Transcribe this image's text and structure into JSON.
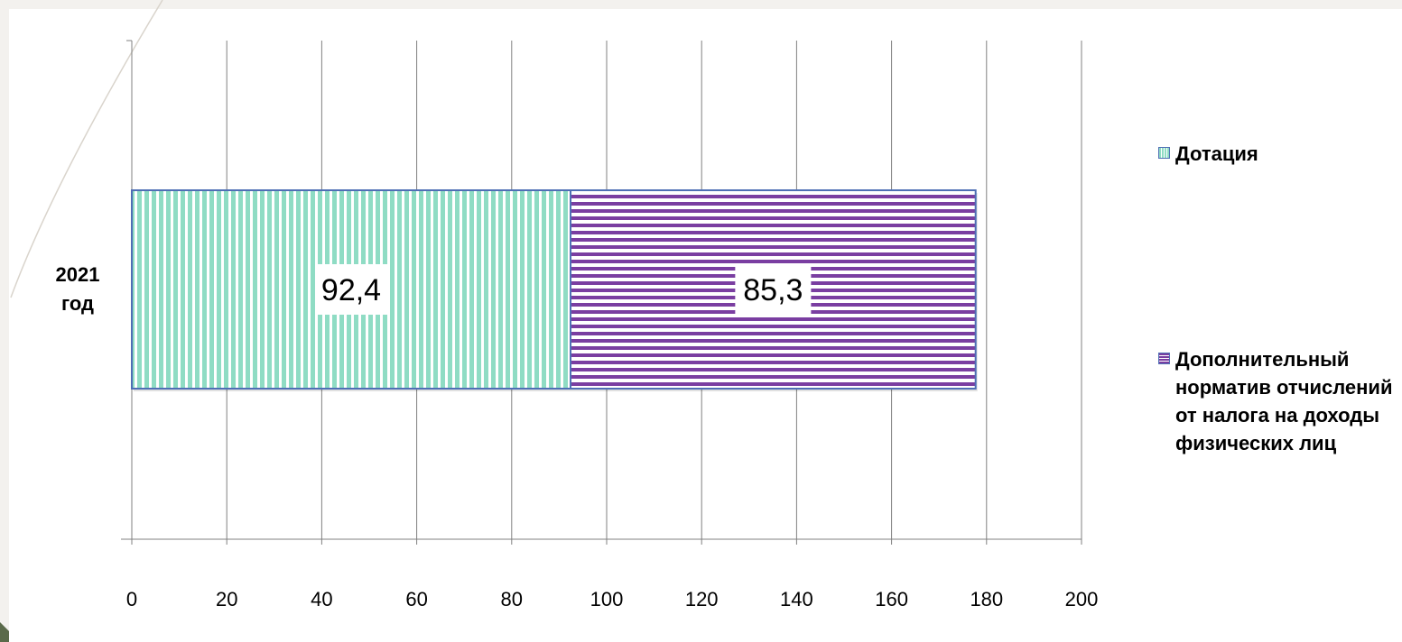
{
  "chart_data": {
    "type": "bar",
    "orientation": "horizontal",
    "stacked": true,
    "categories": [
      "2021 год"
    ],
    "series": [
      {
        "name": "Дотация",
        "values": [
          92.4
        ],
        "labels": [
          "92,4"
        ],
        "color": "#8fdcc4",
        "pattern": "vertical-stripes"
      },
      {
        "name": "Дополнительный норматив отчислений от налога на доходы физических лиц",
        "values": [
          85.3
        ],
        "labels": [
          "85,3"
        ],
        "color": "#7a3ea1",
        "pattern": "horizontal-stripes"
      }
    ],
    "xlim": [
      0,
      200
    ],
    "xticks": [
      "0",
      "20",
      "40",
      "60",
      "80",
      "100",
      "120",
      "140",
      "160",
      "180",
      "200"
    ],
    "grid": true,
    "legend_position": "right",
    "title": "",
    "xlabel": "",
    "ylabel": ""
  },
  "colors": {
    "outline": "#4f6fb5",
    "grid": "#808080",
    "background": "#f3f1ee"
  }
}
